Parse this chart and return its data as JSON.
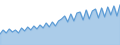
{
  "values": [
    22,
    30,
    24,
    32,
    26,
    30,
    24,
    34,
    28,
    36,
    30,
    38,
    32,
    40,
    34,
    44,
    36,
    46,
    38,
    48,
    52,
    58,
    46,
    62,
    48,
    64,
    66,
    50,
    70,
    52,
    68,
    72,
    54,
    74,
    56,
    76,
    60,
    78,
    58,
    80
  ],
  "line_color": "#5b9bd5",
  "fill_color": "#9dc3e6",
  "background_color": "#ffffff",
  "linewidth": 0.8,
  "fill_alpha": 0.85,
  "ylim_min": 0,
  "ylim_max": 90
}
